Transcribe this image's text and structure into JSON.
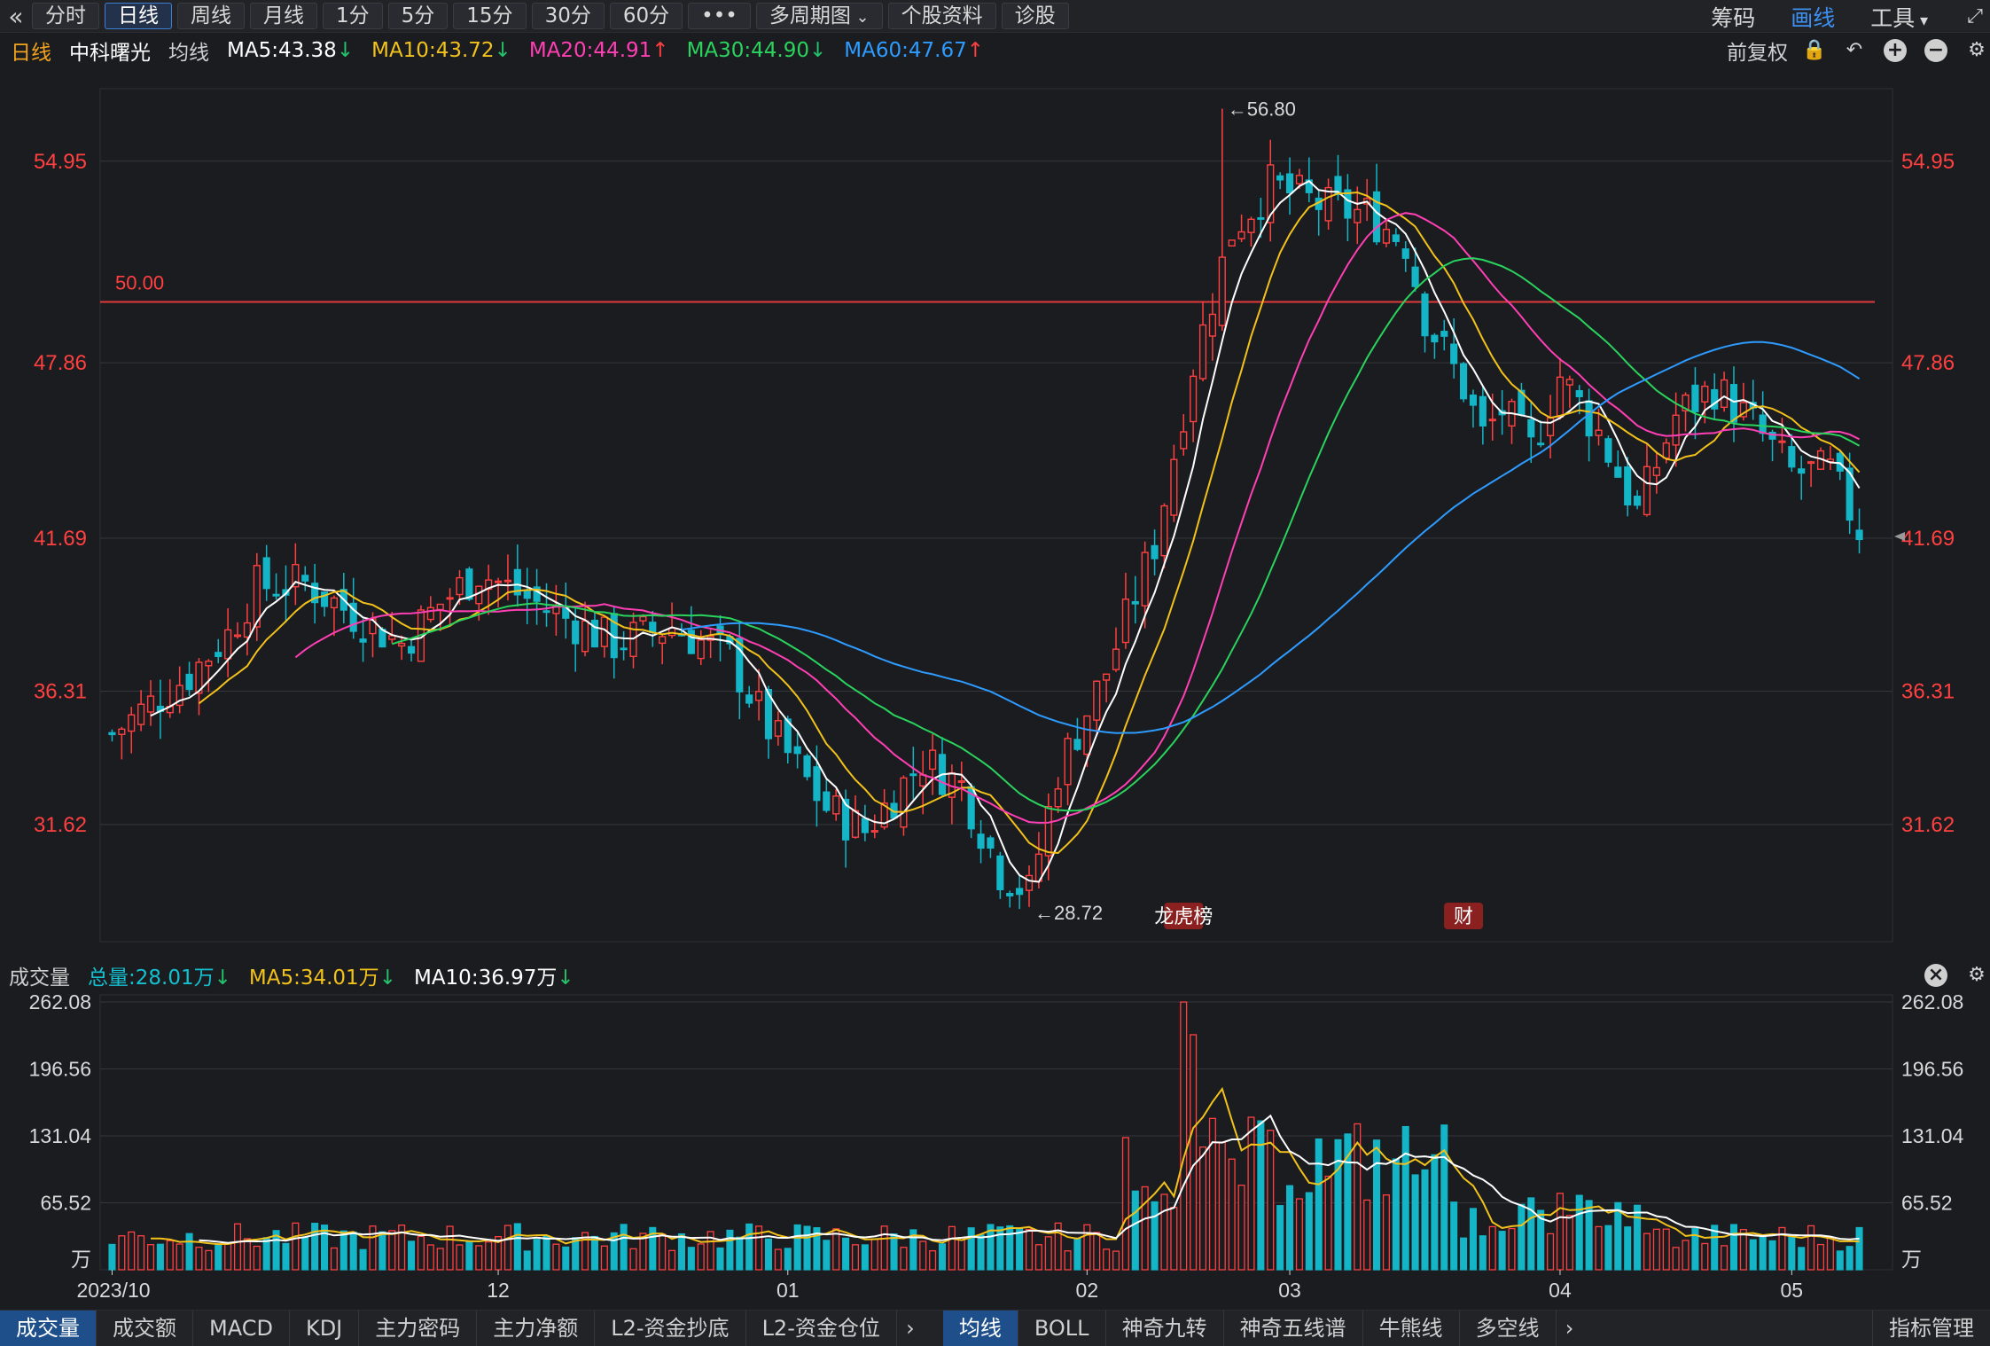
{
  "toolbar": {
    "back_icon": "double-chevron-left-icon",
    "periods": [
      "分时",
      "日线",
      "周线",
      "月线",
      "1分",
      "5分",
      "15分",
      "30分",
      "60分"
    ],
    "active_period": "日线",
    "more_label": "•••",
    "multi_period_label": "多周期图",
    "stock_info_label": "个股资料",
    "diagnose_label": "诊股",
    "right": {
      "chips_label": "筹码",
      "draw_label": "画线",
      "tools_label": "工具"
    }
  },
  "ma_bar": {
    "period": "日线",
    "stock_name": "中科曙光",
    "ma_label": "均线",
    "ma": [
      {
        "text": "MA5:43.38",
        "arrow": "↓",
        "color": "#ffffff",
        "dir": "down"
      },
      {
        "text": "MA10:43.72",
        "arrow": "↓",
        "color": "#f2c21b",
        "dir": "down"
      },
      {
        "text": "MA20:44.91",
        "arrow": "↑",
        "color": "#ff3fb4",
        "dir": "up"
      },
      {
        "text": "MA30:44.90",
        "arrow": "↓",
        "color": "#2ad35d",
        "dir": "down"
      },
      {
        "text": "MA60:47.67",
        "arrow": "↑",
        "color": "#2e9bff",
        "dir": "up"
      }
    ],
    "adjust_label": "前复权"
  },
  "volume_bar": {
    "label": "成交量",
    "total": {
      "text": "总量:28.01万",
      "arrow": "↓",
      "color": "#14c0d0"
    },
    "ma5": {
      "text": "MA5:34.01万",
      "arrow": "↓",
      "color": "#f2c21b"
    },
    "ma10": {
      "text": "MA10:36.97万",
      "arrow": "↓",
      "color": "#ffffff"
    }
  },
  "bottom_tabs_left": [
    "成交量",
    "成交额",
    "MACD",
    "KDJ",
    "主力密码",
    "主力净额",
    "L2-资金抄底",
    "L2-资金仓位"
  ],
  "bottom_tabs_right": [
    "均线",
    "BOLL",
    "神奇九转",
    "神奇五线谱",
    "牛熊线",
    "多空线"
  ],
  "active_left_tab": "成交量",
  "active_right_tab": "均线",
  "indicator_manage_label": "指标管理",
  "chart_data": {
    "type": "candlestick",
    "price_axis_ticks": [
      "54.95",
      "47.86",
      "41.69",
      "36.31",
      "31.62"
    ],
    "price_ylim": [
      27.5,
      57.5
    ],
    "hline": {
      "value": 50.0,
      "label": "50.00",
      "color": "#e03a3a"
    },
    "annotations": {
      "high": "←56.80",
      "low": "←28.72",
      "event_markers": [
        "龙虎榜",
        "财"
      ]
    },
    "x_ticks": [
      "2023/10",
      "12",
      "01",
      "02",
      "03",
      "04",
      "05"
    ],
    "volume_axis_ticks": [
      "262.08",
      "196.56",
      "131.04",
      "65.52",
      "万"
    ],
    "volume_ylim": [
      0,
      262.08
    ],
    "colors": {
      "up": "#ff4040",
      "down": "#14b5c7",
      "ma5": "#ffffff",
      "ma10": "#f2c21b",
      "ma20": "#ff3fb4",
      "ma30": "#2ad35d",
      "ma60": "#2e9bff"
    }
  }
}
